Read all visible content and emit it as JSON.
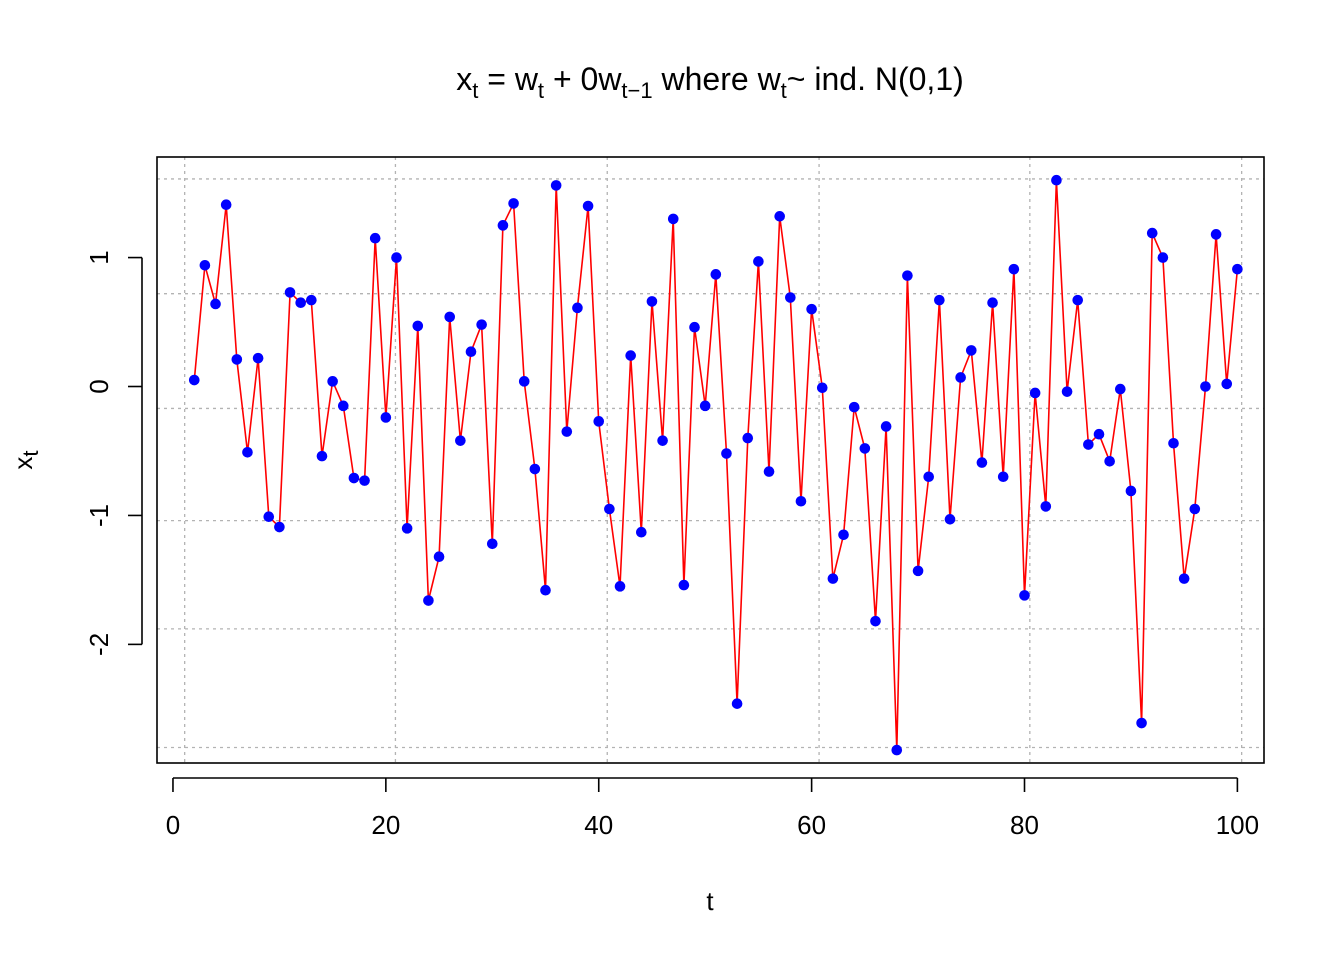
{
  "chart_data": {
    "type": "line",
    "title": {
      "p1": "x",
      "p1_sub": "t",
      "p2": " = w",
      "p2_sub": "t",
      "p3": " + 0w",
      "p3_sub": "t−1",
      "p4": " where w",
      "p4_sub": "t",
      "p5": "~ ind. N(0,1)"
    },
    "xlabel": "t",
    "ylabel": "x",
    "ylabel_sub": "t",
    "xlim": [
      -1.5,
      102.5
    ],
    "ylim": [
      -2.92,
      1.78
    ],
    "x_ticks": [
      0,
      20,
      40,
      60,
      80,
      100
    ],
    "y_ticks": [
      -2,
      -1,
      0,
      1
    ],
    "y_tick_labels": [
      "-2",
      "-1",
      "0",
      "1"
    ],
    "grid": true,
    "grid_x": [
      1.1,
      20.9,
      40.8,
      60.7,
      80.5,
      100.4
    ],
    "grid_y": [
      -2.8,
      -1.88,
      -1.04,
      -0.17,
      0.72,
      1.61
    ],
    "line_color": "#ff0000",
    "point_color": "#0000ff",
    "grid_color": "#b3b3b3",
    "series": [
      {
        "x": [
          2,
          3,
          4,
          5,
          6,
          7,
          8,
          9,
          10,
          11,
          12,
          13,
          14,
          15,
          16,
          17,
          18,
          19,
          20,
          21,
          22,
          23,
          24,
          25,
          26,
          27,
          28,
          29,
          30,
          31,
          32,
          33,
          34,
          35,
          36,
          37,
          38,
          39,
          40,
          41,
          42,
          43,
          44,
          45,
          46,
          47,
          48,
          49,
          50,
          51,
          52,
          53,
          54,
          55,
          56,
          57,
          58,
          59,
          60,
          61,
          62,
          63,
          64,
          65,
          66,
          67,
          68,
          69,
          70,
          71,
          72,
          73,
          74,
          75,
          76,
          77,
          78,
          79,
          80,
          81,
          82,
          83,
          84,
          85,
          86,
          87,
          88,
          89,
          90,
          91,
          92,
          93,
          94,
          95,
          96,
          97,
          98,
          99,
          100
        ],
        "values": [
          0.05,
          0.94,
          0.64,
          1.41,
          0.21,
          -0.51,
          0.22,
          -1.01,
          -1.09,
          0.73,
          0.65,
          0.67,
          -0.54,
          0.04,
          -0.15,
          -0.71,
          -0.73,
          1.15,
          -0.24,
          1.0,
          -1.1,
          0.47,
          -1.66,
          -1.32,
          0.54,
          -0.42,
          0.27,
          0.48,
          -1.22,
          1.25,
          1.42,
          0.04,
          -0.64,
          -1.58,
          1.56,
          -0.35,
          0.61,
          1.4,
          -0.27,
          -0.95,
          -1.55,
          0.24,
          -1.13,
          0.66,
          -0.42,
          1.3,
          -1.54,
          0.46,
          -0.15,
          0.87,
          -0.52,
          -2.46,
          -0.4,
          0.97,
          -0.66,
          1.32,
          0.69,
          -0.89,
          0.6,
          -0.01,
          -1.49,
          -1.15,
          -0.16,
          -0.48,
          -1.82,
          -0.31,
          -2.82,
          0.86,
          -1.43,
          -0.7,
          0.67,
          -1.03,
          0.07,
          0.28,
          -0.59,
          0.65,
          -0.7,
          0.91,
          -1.62,
          -0.05,
          -0.93,
          1.6,
          -0.04,
          0.67,
          -0.45,
          -0.37,
          -0.58,
          -0.02,
          -0.81,
          -2.61,
          1.19,
          1.0,
          -0.44,
          -1.49,
          -0.95,
          0.0,
          1.18,
          0.02,
          0.91
        ]
      }
    ]
  }
}
